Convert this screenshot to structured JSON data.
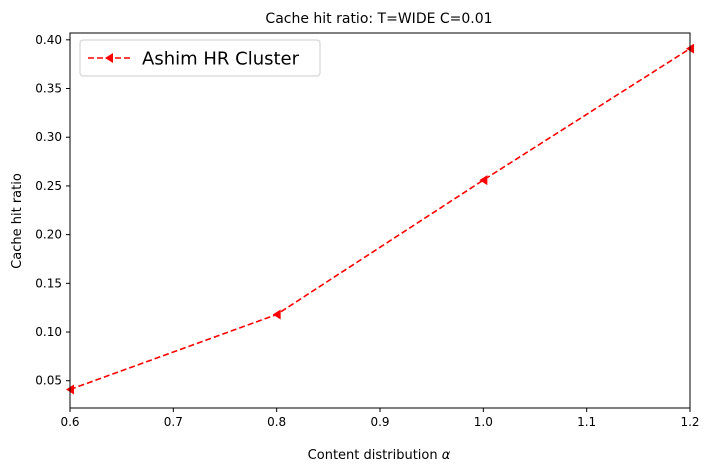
{
  "chart_data": {
    "type": "line",
    "title": "Cache hit ratio: T=WIDE C=0.01",
    "xlabel": "Content distribution α",
    "ylabel": "Cache hit ratio",
    "xlim": [
      0.6,
      1.2
    ],
    "ylim": [
      0.022,
      0.407
    ],
    "xticks": [
      0.6,
      0.7,
      0.8,
      0.9,
      1.0,
      1.1,
      1.2
    ],
    "xtick_labels": [
      "0.6",
      "0.7",
      "0.8",
      "0.9",
      "1.0",
      "1.1",
      "1.2"
    ],
    "yticks": [
      0.05,
      0.1,
      0.15,
      0.2,
      0.25,
      0.3,
      0.35,
      0.4
    ],
    "ytick_labels": [
      "0.05",
      "0.10",
      "0.15",
      "0.20",
      "0.25",
      "0.30",
      "0.35",
      "0.40"
    ],
    "grid": false,
    "legend_position": "upper-left",
    "series": [
      {
        "name": "Ashim HR Cluster",
        "color": "#ff0000",
        "line_style": "dashed",
        "marker": "triangle-left",
        "x": [
          0.6,
          0.8,
          1.0,
          1.2
        ],
        "y": [
          0.041,
          0.118,
          0.256,
          0.391
        ]
      }
    ]
  }
}
